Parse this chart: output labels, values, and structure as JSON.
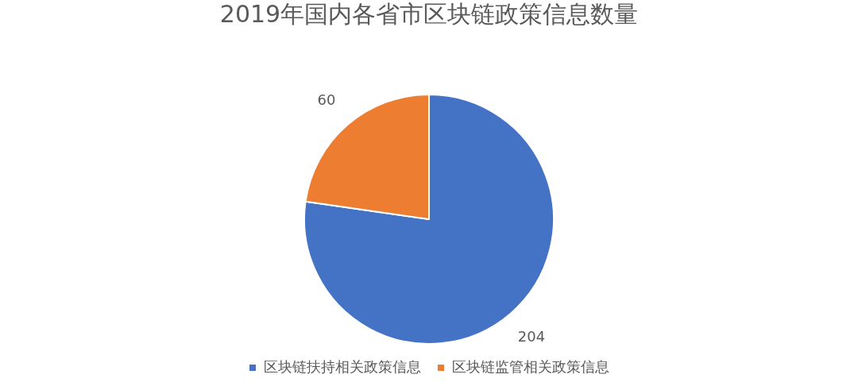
{
  "chart_data": {
    "type": "pie",
    "title": "2019年国内各省市区块链政策信息数量",
    "categories": [
      "区块链扶持相关政策信息",
      "区块链监管相关政策信息"
    ],
    "values": [
      204,
      60
    ],
    "colors": [
      "#4472c4",
      "#ed7d31"
    ],
    "data_labels": true,
    "legend": "bottom"
  }
}
